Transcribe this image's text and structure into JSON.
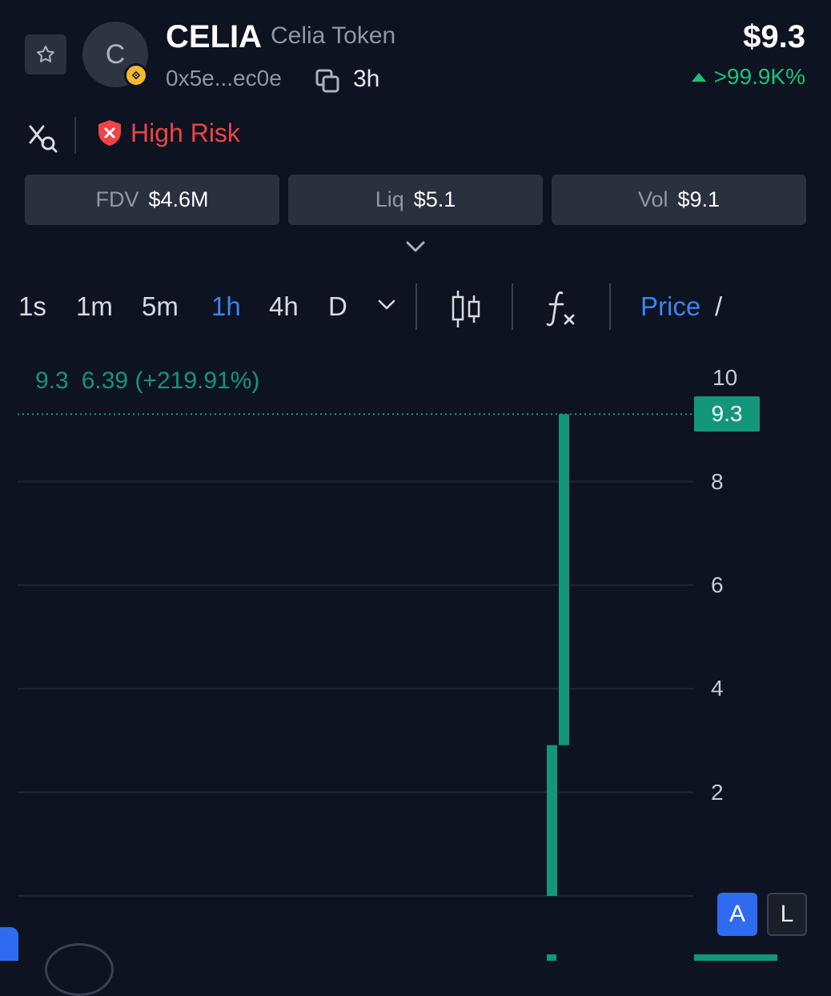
{
  "token": {
    "symbol": "CELIA",
    "name": "Celia Token",
    "avatar_letter": "C",
    "address": "0x5e...ec0e",
    "age": "3h",
    "price": "$9.3",
    "change": ">99.9K%"
  },
  "risk": {
    "label": "High Risk"
  },
  "stats": [
    {
      "label": "FDV",
      "value": "$4.6M"
    },
    {
      "label": "Liq",
      "value": "$5.1"
    },
    {
      "label": "Vol",
      "value": "$9.1"
    }
  ],
  "toolbar": {
    "intervals": [
      "1s",
      "1m",
      "5m",
      "1h",
      "4h",
      "D"
    ],
    "active_interval": "1h",
    "price_tab": "Price",
    "slash": "/"
  },
  "chart_data": {
    "type": "candlestick",
    "legend": {
      "close": "9.3",
      "change": "6.39 (+219.91%)"
    },
    "current_price_tag": "9.3",
    "y_ticks": [
      "10",
      "8",
      "6",
      "4",
      "2"
    ],
    "ylim": [
      0,
      10
    ],
    "candles": [
      {
        "open": 0,
        "close": 2.91
      },
      {
        "open": 2.91,
        "close": 9.3
      }
    ],
    "colors": {
      "up": "#14967b",
      "grid": "#1f2633"
    }
  },
  "scale_buttons": {
    "auto": "A",
    "log": "L"
  },
  "colors": {
    "accent": "#3b82f6",
    "positive": "#19c37d",
    "danger": "#ef4444",
    "background": "#0d1320"
  }
}
